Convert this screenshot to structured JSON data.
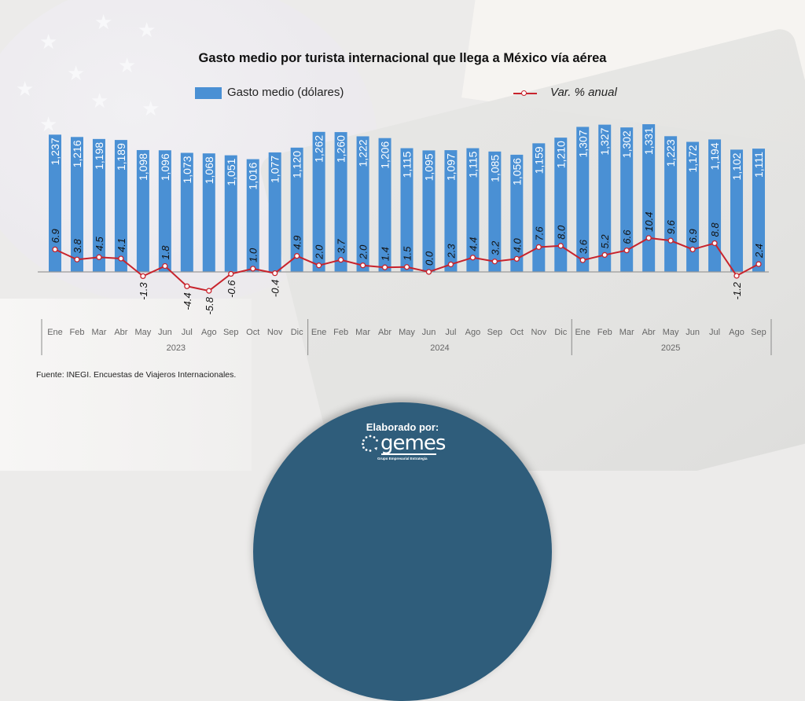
{
  "chart_data": {
    "type": "bar",
    "title": "Gasto medio por turista internacional que llega a México vía aérea",
    "xlabel": "",
    "ylabel": "",
    "legend_position": "top",
    "grid": false,
    "categories": [
      "Ene",
      "Feb",
      "Mar",
      "Abr",
      "May",
      "Jun",
      "Jul",
      "Ago",
      "Sep",
      "Oct",
      "Nov",
      "Dic",
      "Ene",
      "Feb",
      "Mar",
      "Abr",
      "May",
      "Jun",
      "Jul",
      "Ago",
      "Sep",
      "Oct",
      "Nov",
      "Dic",
      "Ene",
      "Feb",
      "Mar",
      "Abr",
      "May",
      "Jun",
      "Jul",
      "Ago",
      "Sep"
    ],
    "year_groups": [
      {
        "label": "2023",
        "count": 12
      },
      {
        "label": "2024",
        "count": 12
      },
      {
        "label": "2025",
        "count": 9
      }
    ],
    "series": [
      {
        "name": "Gasto medio (dólares)",
        "type": "bar",
        "color": "#4a90d4",
        "values": [
          1237,
          1216,
          1198,
          1189,
          1098,
          1096,
          1073,
          1068,
          1051,
          1016,
          1077,
          1120,
          1262,
          1260,
          1222,
          1206,
          1115,
          1095,
          1097,
          1115,
          1085,
          1056,
          1159,
          1210,
          1307,
          1327,
          1302,
          1331,
          1223,
          1172,
          1194,
          1102,
          1111
        ],
        "labels": [
          "1,237",
          "1,216",
          "1,198",
          "1,189",
          "1,098",
          "1,096",
          "1,073",
          "1,068",
          "1,051",
          "1,016",
          "1,077",
          "1,120",
          "1,262",
          "1,260",
          "1,222",
          "1,206",
          "1,115",
          "1,095",
          "1,097",
          "1,115",
          "1,085",
          "1,056",
          "1,159",
          "1,210",
          "1,307",
          "1,327",
          "1,302",
          "1,331",
          "1,223",
          "1,172",
          "1,194",
          "1,102",
          "1,111"
        ]
      },
      {
        "name": "Var. % anual",
        "type": "line",
        "color": "#c8232c",
        "values": [
          6.9,
          3.8,
          4.5,
          4.1,
          -1.3,
          1.8,
          -4.4,
          -5.8,
          -0.6,
          1.0,
          -0.4,
          4.9,
          2.0,
          3.7,
          2.0,
          1.4,
          1.5,
          0.0,
          2.3,
          4.4,
          3.2,
          4.0,
          7.6,
          8.0,
          3.6,
          5.2,
          6.6,
          10.4,
          9.6,
          6.9,
          8.8,
          -1.2,
          2.4
        ],
        "labels": [
          "6.9",
          "3.8",
          "4.5",
          "4.1",
          "-1.3",
          "1.8",
          "-4.4",
          "-5.8",
          "-0.6",
          "1.0",
          "-0.4",
          "4.9",
          "2.0",
          "3.7",
          "2.0",
          "1.4",
          "1.5",
          "0.0",
          "2.3",
          "4.4",
          "3.2",
          "4.0",
          "7.6",
          "8.0",
          "3.6",
          "5.2",
          "6.6",
          "10.4",
          "9.6",
          "6.9",
          "8.8",
          "-1.2",
          "2.4"
        ]
      }
    ]
  },
  "legend": {
    "bar_label": "Gasto medio (dólares)",
    "line_label": "Var. % anual"
  },
  "source": "Fuente: INEGI. Encuestas de Viajeros Internacionales.",
  "credit": {
    "title": "Elaborado por:",
    "logo_text": "gemes",
    "logo_tagline": "Grupo Empresarial Estrategia"
  },
  "colors": {
    "bar": "#4a90d4",
    "line": "#c8232c",
    "badge": "#2f5d7b"
  }
}
